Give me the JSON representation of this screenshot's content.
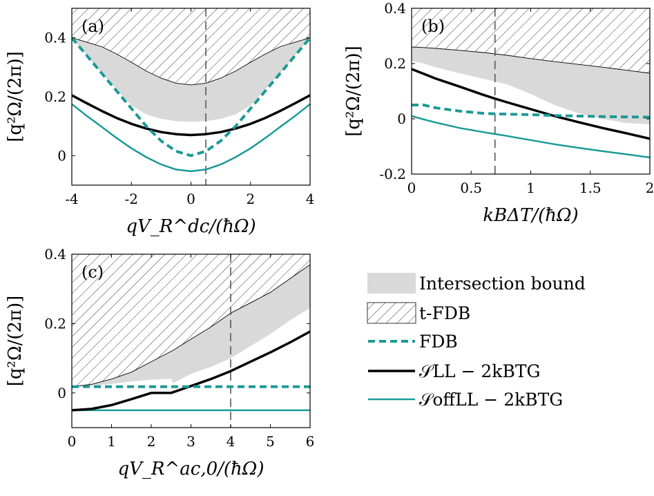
{
  "colors": {
    "teal": "#1a9a96",
    "black": "#000000",
    "gray_fill": "#d9d9d9",
    "hatch": "#3a3a3a",
    "vline": "#555555"
  },
  "legend": {
    "items": [
      {
        "key": "intersection",
        "label": "Intersection bound"
      },
      {
        "key": "tfdb",
        "label": "t-FDB"
      },
      {
        "key": "fdb",
        "label": "FDB"
      },
      {
        "key": "sll",
        "label": "𝒮LL − 2kBTG"
      },
      {
        "key": "sll_off",
        "label": "𝒮offLL − 2kBTG"
      }
    ]
  },
  "chart_data": [
    {
      "id": "a",
      "type": "line",
      "panel_label": "(a)",
      "xlabel": "qV_R^dc/(ħΩ)",
      "ylabel": "[q²Ω/(2π)]",
      "xlim": [
        -4,
        4
      ],
      "ylim": [
        -0.1,
        0.5
      ],
      "xticks": [
        -4,
        -2,
        0,
        2,
        4
      ],
      "xtick_labels": [
        "-4",
        "-2",
        "0",
        "2",
        "4"
      ],
      "yticks": [
        0,
        0.2,
        0.4
      ],
      "ytick_labels": [
        "0",
        "0.2",
        "0.4"
      ],
      "vline": 0.5,
      "x": [
        -4,
        -3.5,
        -3,
        -2.5,
        -2,
        -1.5,
        -1,
        -0.5,
        0,
        0.5,
        1,
        1.5,
        2,
        2.5,
        3,
        3.5,
        4
      ],
      "series": [
        {
          "name": "t-FDB",
          "key": "tfdb",
          "values": [
            0.4,
            0.385,
            0.37,
            0.345,
            0.317,
            0.287,
            0.263,
            0.246,
            0.24,
            0.246,
            0.263,
            0.287,
            0.317,
            0.345,
            0.37,
            0.385,
            0.4
          ]
        },
        {
          "name": "Intersection bound",
          "key": "intersection",
          "values": [
            0.4,
            0.34,
            0.28,
            0.225,
            0.17,
            0.14,
            0.125,
            0.117,
            0.115,
            0.117,
            0.125,
            0.14,
            0.17,
            0.225,
            0.28,
            0.34,
            0.4
          ]
        },
        {
          "name": "FDB",
          "key": "fdb",
          "values": [
            0.4,
            0.34,
            0.28,
            0.22,
            0.16,
            0.1,
            0.05,
            0.015,
            0.0,
            0.015,
            0.05,
            0.1,
            0.16,
            0.22,
            0.28,
            0.34,
            0.4
          ]
        },
        {
          "name": "SLL - 2kBTG",
          "key": "sll",
          "values": [
            0.205,
            0.178,
            0.152,
            0.128,
            0.108,
            0.092,
            0.08,
            0.073,
            0.07,
            0.073,
            0.08,
            0.092,
            0.108,
            0.128,
            0.152,
            0.178,
            0.205
          ]
        },
        {
          "name": "SLL^off - 2kBTG",
          "key": "sll_off",
          "values": [
            0.175,
            0.135,
            0.098,
            0.06,
            0.025,
            -0.005,
            -0.03,
            -0.047,
            -0.053,
            -0.047,
            -0.03,
            -0.005,
            0.025,
            0.06,
            0.098,
            0.135,
            0.175
          ]
        }
      ]
    },
    {
      "id": "b",
      "type": "line",
      "panel_label": "(b)",
      "xlabel": "kBΔT/(ħΩ)",
      "ylabel": "[q²Ω/(2π)]",
      "xlim": [
        0,
        2
      ],
      "ylim": [
        -0.2,
        0.4
      ],
      "xticks": [
        0,
        0.5,
        1,
        1.5,
        2
      ],
      "xtick_labels": [
        "0",
        "0.5",
        "1",
        "1.5",
        "2"
      ],
      "yticks": [
        -0.2,
        0,
        0.2,
        0.4
      ],
      "ytick_labels": [
        "-0.2",
        "0",
        "0.2",
        "0.4"
      ],
      "vline": 0.7,
      "x": [
        0,
        0.1,
        0.2,
        0.4,
        0.6,
        0.7,
        0.8,
        1.0,
        1.2,
        1.4,
        1.6,
        1.8,
        2.0
      ],
      "series": [
        {
          "name": "t-FDB",
          "key": "tfdb",
          "values": [
            0.26,
            0.258,
            0.255,
            0.248,
            0.24,
            0.235,
            0.23,
            0.218,
            0.207,
            0.197,
            0.187,
            0.176,
            0.165
          ]
        },
        {
          "name": "Intersection bound",
          "key": "intersection",
          "values": [
            0.21,
            0.2,
            0.187,
            0.165,
            0.145,
            0.135,
            0.125,
            0.09,
            0.05,
            0.02,
            0.0,
            -0.015,
            -0.02
          ]
        },
        {
          "name": "FDB",
          "key": "fdb",
          "values": [
            0.05,
            0.05,
            0.04,
            0.028,
            0.02,
            0.018,
            0.017,
            0.015,
            0.012,
            0.01,
            0.008,
            0.007,
            0.006
          ]
        },
        {
          "name": "SLL - 2kBTG",
          "key": "sll",
          "values": [
            0.18,
            0.163,
            0.146,
            0.117,
            0.087,
            0.073,
            0.06,
            0.035,
            0.01,
            -0.012,
            -0.033,
            -0.052,
            -0.072
          ]
        },
        {
          "name": "SLL^off - 2kBTG",
          "key": "sll_off",
          "values": [
            0.01,
            -0.002,
            -0.013,
            -0.033,
            -0.048,
            -0.055,
            -0.062,
            -0.077,
            -0.092,
            -0.105,
            -0.117,
            -0.128,
            -0.14
          ]
        }
      ]
    },
    {
      "id": "c",
      "type": "line",
      "panel_label": "(c)",
      "xlabel": "qV_R^ac,0/(ħΩ)",
      "ylabel": "[q²Ω/(2π)]",
      "xlim": [
        0,
        6
      ],
      "ylim": [
        -0.1,
        0.4
      ],
      "xticks": [
        0,
        1,
        2,
        3,
        4,
        5,
        6
      ],
      "xtick_labels": [
        "0",
        "1",
        "2",
        "3",
        "4",
        "5",
        "6"
      ],
      "yticks": [
        0,
        0.2,
        0.4
      ],
      "ytick_labels": [
        "0",
        "0.2",
        "0.4"
      ],
      "vline": 4,
      "x": [
        0,
        0.5,
        1,
        1.5,
        2,
        2.5,
        2.55,
        3,
        3.5,
        4,
        4.5,
        5,
        5.5,
        6
      ],
      "series": [
        {
          "name": "t-FDB",
          "key": "tfdb",
          "values": [
            0.018,
            0.025,
            0.04,
            0.06,
            0.09,
            0.12,
            0.123,
            0.155,
            0.19,
            0.23,
            0.26,
            0.29,
            0.33,
            0.37
          ]
        },
        {
          "name": "Intersection bound",
          "key": "intersection",
          "values": [
            0.018,
            0.02,
            0.026,
            0.033,
            0.038,
            0.041,
            0.028,
            0.055,
            0.075,
            0.1,
            0.135,
            0.17,
            0.21,
            0.245
          ]
        },
        {
          "name": "FDB",
          "key": "fdb",
          "values": [
            0.018,
            0.018,
            0.018,
            0.018,
            0.018,
            0.018,
            0.018,
            0.018,
            0.018,
            0.018,
            0.018,
            0.018,
            0.018,
            0.018
          ]
        },
        {
          "name": "SLL - 2kBTG",
          "key": "sll",
          "values": [
            -0.05,
            -0.046,
            -0.035,
            -0.018,
            0.0,
            0.0,
            0.002,
            0.02,
            0.04,
            0.063,
            0.09,
            0.117,
            0.146,
            0.177
          ]
        },
        {
          "name": "SLL^off - 2kBTG",
          "key": "sll_off",
          "values": [
            -0.05,
            -0.05,
            -0.05,
            -0.05,
            -0.05,
            -0.05,
            -0.05,
            -0.05,
            -0.05,
            -0.05,
            -0.05,
            -0.05,
            -0.05,
            -0.05
          ]
        }
      ]
    }
  ]
}
